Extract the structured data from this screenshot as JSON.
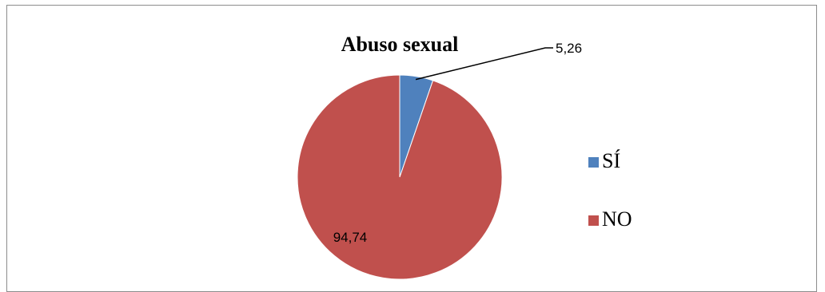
{
  "chart_data": {
    "type": "pie",
    "title": "Abuso sexual",
    "categories": [
      "SÍ",
      "NO"
    ],
    "values": [
      5.26,
      94.74
    ],
    "data_labels": [
      "5,26",
      "94,74"
    ],
    "colors": [
      "#4f81bd",
      "#c0504d"
    ],
    "legend_position": "right",
    "start_angle_deg": 0,
    "direction": "clockwise"
  }
}
